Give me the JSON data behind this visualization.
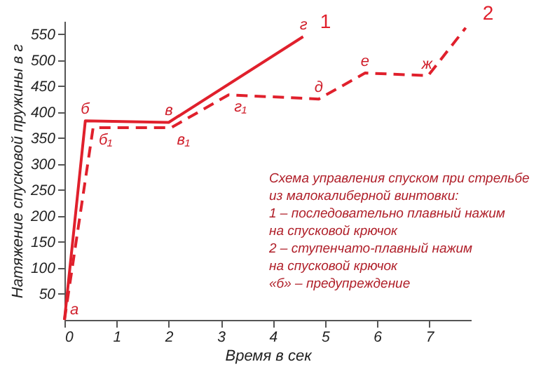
{
  "chart_data": {
    "type": "line",
    "xlabel": "Время в сек",
    "ylabel": "Натяжение спусковой пружины в г",
    "xlim": [
      0,
      7.8
    ],
    "ylim": [
      0,
      575
    ],
    "xticks": [
      0,
      1,
      2,
      3,
      4,
      5,
      6,
      7
    ],
    "yticks": [
      50,
      100,
      150,
      200,
      250,
      300,
      350,
      400,
      450,
      500,
      550
    ],
    "grid": false,
    "marker": "none",
    "series": [
      {
        "name": "1",
        "color": "#e0202c",
        "line_style": "solid",
        "x": [
          0,
          0.4,
          2.0,
          4.58
        ],
        "values": [
          0,
          383,
          380,
          545
        ]
      },
      {
        "name": "2",
        "color": "#e0202c",
        "line_style": "dashed",
        "x": [
          0,
          0.55,
          2.05,
          3.15,
          4.88,
          5.77,
          6.98,
          7.7
        ],
        "values": [
          0,
          370,
          370,
          433,
          425,
          475,
          470,
          562
        ]
      }
    ],
    "annotations": [
      {
        "text": "а",
        "x": 0,
        "y": 0
      },
      {
        "text": "б",
        "x": 0.4,
        "y": 383
      },
      {
        "text": "в",
        "x": 2.0,
        "y": 380
      },
      {
        "text": "г",
        "x": 4.58,
        "y": 545
      },
      {
        "text": "б₁",
        "x": 0.55,
        "y": 370
      },
      {
        "text": "в₁",
        "x": 2.05,
        "y": 370
      },
      {
        "text": "г₁",
        "x": 3.15,
        "y": 433
      },
      {
        "text": "д",
        "x": 4.88,
        "y": 425
      },
      {
        "text": "е",
        "x": 5.77,
        "y": 475
      },
      {
        "text": "ж",
        "x": 6.98,
        "y": 470
      },
      "Схема управления спуском при стрельбе",
      "из малокалиберной винтовки:",
      "1 – последовательно плавный нажим",
      "на спусковой крючок",
      "2 – ступенчато-плавный нажим",
      "на спусковой крючок",
      "«б» – предупреждение"
    ]
  }
}
